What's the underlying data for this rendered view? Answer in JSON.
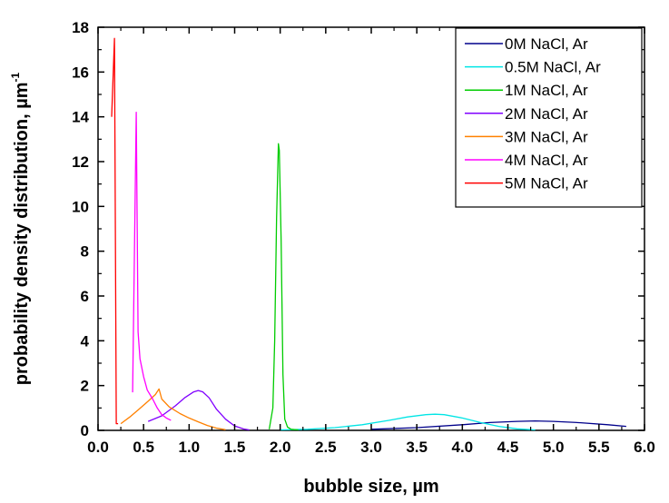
{
  "chart_data": {
    "type": "line",
    "xlabel": "bubble size, µm",
    "ylabel": "probability density distribution, µm",
    "ylabel_superscript": "-1",
    "xlim": [
      0.0,
      6.0
    ],
    "ylim": [
      0,
      18
    ],
    "x_ticks": [
      "0.0",
      "0.5",
      "1.0",
      "1.5",
      "2.0",
      "2.5",
      "3.0",
      "3.5",
      "4.0",
      "4.5",
      "5.0",
      "5.5",
      "6.0"
    ],
    "y_ticks": [
      "0",
      "2",
      "4",
      "6",
      "8",
      "10",
      "12",
      "14",
      "16",
      "18"
    ],
    "legend_position": "top-right",
    "grid": false,
    "series": [
      {
        "name": "0M NaCl, Ar",
        "color": "#00008B",
        "x": [
          3.0,
          3.5,
          4.0,
          4.3,
          4.6,
          4.8,
          5.0,
          5.3,
          5.6,
          5.8
        ],
        "y": [
          0.05,
          0.12,
          0.25,
          0.35,
          0.4,
          0.42,
          0.4,
          0.34,
          0.25,
          0.18
        ]
      },
      {
        "name": "0.5M NaCl, Ar",
        "color": "#00E5E5",
        "x": [
          2.0,
          2.3,
          2.6,
          2.9,
          3.2,
          3.4,
          3.6,
          3.7,
          3.8,
          4.0,
          4.2,
          4.4,
          4.6,
          4.8
        ],
        "y": [
          0.02,
          0.05,
          0.12,
          0.25,
          0.45,
          0.6,
          0.7,
          0.72,
          0.7,
          0.55,
          0.35,
          0.18,
          0.07,
          0.02
        ]
      },
      {
        "name": "1M NaCl, Ar",
        "color": "#00CC00",
        "x": [
          1.88,
          1.92,
          1.94,
          1.96,
          1.98,
          1.99,
          2.01,
          2.03,
          2.05,
          2.08,
          2.12,
          2.2
        ],
        "y": [
          0.05,
          1.0,
          4.0,
          9.5,
          12.8,
          12.5,
          8.5,
          2.5,
          0.5,
          0.15,
          0.05,
          0.02
        ]
      },
      {
        "name": "2M NaCl, Ar",
        "color": "#8000FF",
        "x": [
          0.55,
          0.7,
          0.85,
          0.95,
          1.05,
          1.1,
          1.15,
          1.22,
          1.3,
          1.4,
          1.5,
          1.6,
          1.66
        ],
        "y": [
          0.4,
          0.65,
          1.1,
          1.45,
          1.72,
          1.78,
          1.72,
          1.45,
          0.95,
          0.5,
          0.2,
          0.06,
          0.02
        ]
      },
      {
        "name": "3M NaCl, Ar",
        "color": "#FF8000",
        "x": [
          0.25,
          0.35,
          0.45,
          0.55,
          0.63,
          0.67,
          0.7,
          0.78,
          0.9,
          1.0,
          1.1,
          1.2,
          1.3,
          1.4
        ],
        "y": [
          0.3,
          0.6,
          0.95,
          1.3,
          1.6,
          1.85,
          1.4,
          1.05,
          0.75,
          0.55,
          0.38,
          0.22,
          0.1,
          0.03
        ]
      },
      {
        "name": "4M NaCl, Ar",
        "color": "#FF00FF",
        "x": [
          0.38,
          0.42,
          0.44,
          0.46,
          0.5,
          0.54,
          0.6,
          0.65,
          0.7,
          0.75,
          0.8
        ],
        "y": [
          1.7,
          14.2,
          4.4,
          3.2,
          2.4,
          1.8,
          1.4,
          1.0,
          0.7,
          0.55,
          0.45
        ]
      },
      {
        "name": "5M NaCl, Ar",
        "color": "#FF0000",
        "x": [
          0.15,
          0.18,
          0.2,
          0.22
        ],
        "y": [
          14.0,
          17.5,
          0.3,
          0.3
        ]
      }
    ]
  }
}
